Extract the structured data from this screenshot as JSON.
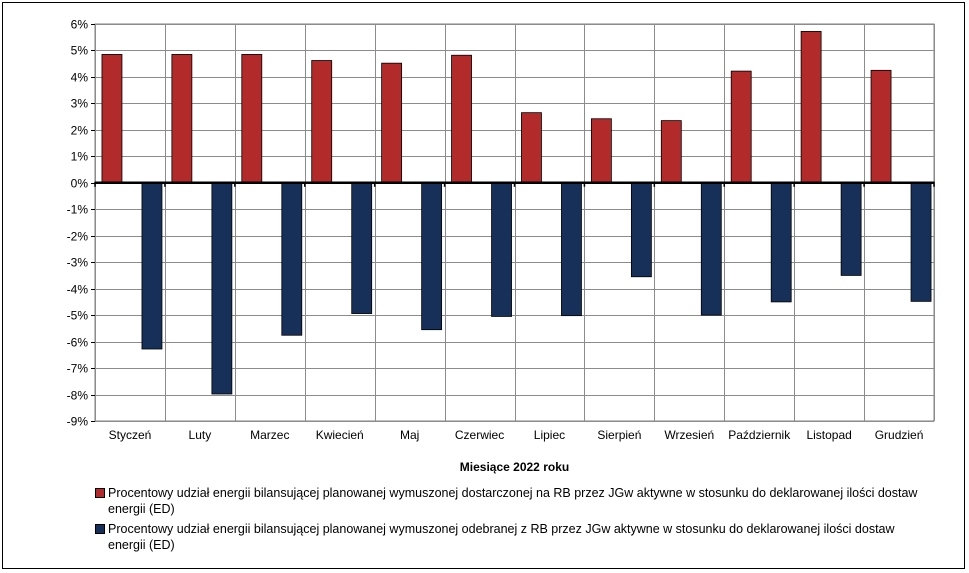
{
  "chart_data": {
    "type": "bar",
    "title": "",
    "xlabel": "Miesiące 2022  roku",
    "ylabel": "",
    "ylim": [
      -9,
      6
    ],
    "yticks": [
      "6%",
      "5%",
      "4%",
      "3%",
      "2%",
      "1%",
      "0%",
      "-1%",
      "-2%",
      "-3%",
      "-4%",
      "-5%",
      "-6%",
      "-7%",
      "-8%",
      "-9%"
    ],
    "categories": [
      "Styczeń",
      "Luty",
      "Marzec",
      "Kwiecień",
      "Maj",
      "Czerwiec",
      "Lipiec",
      "Sierpień",
      "Wrzesień",
      "Październik",
      "Listopad",
      "Grudzień"
    ],
    "series": [
      {
        "name": "Procentowy udział energii bilansującej planowanej wymuszonej dostarczonej na RB przez JGw aktywne w stosunku do deklarowanej ilości dostaw energii (ED)",
        "color": "#b22a2a",
        "values": [
          4.85,
          4.85,
          4.85,
          4.62,
          4.52,
          4.82,
          2.65,
          2.42,
          2.35,
          4.22,
          5.72,
          4.25
        ]
      },
      {
        "name": "Procentowy udział energii bilansującej planowanej wymuszonej odebranej z RB przez JGw aktywne w stosunku do deklarowanej ilości dostaw energii (ED)",
        "color": "#17305a",
        "values": [
          -6.28,
          -7.98,
          -5.76,
          -4.94,
          -5.55,
          -5.05,
          -5.02,
          -3.55,
          -5.0,
          -4.5,
          -3.5,
          -4.48
        ]
      }
    ],
    "grid": true,
    "legend_position": "bottom"
  }
}
